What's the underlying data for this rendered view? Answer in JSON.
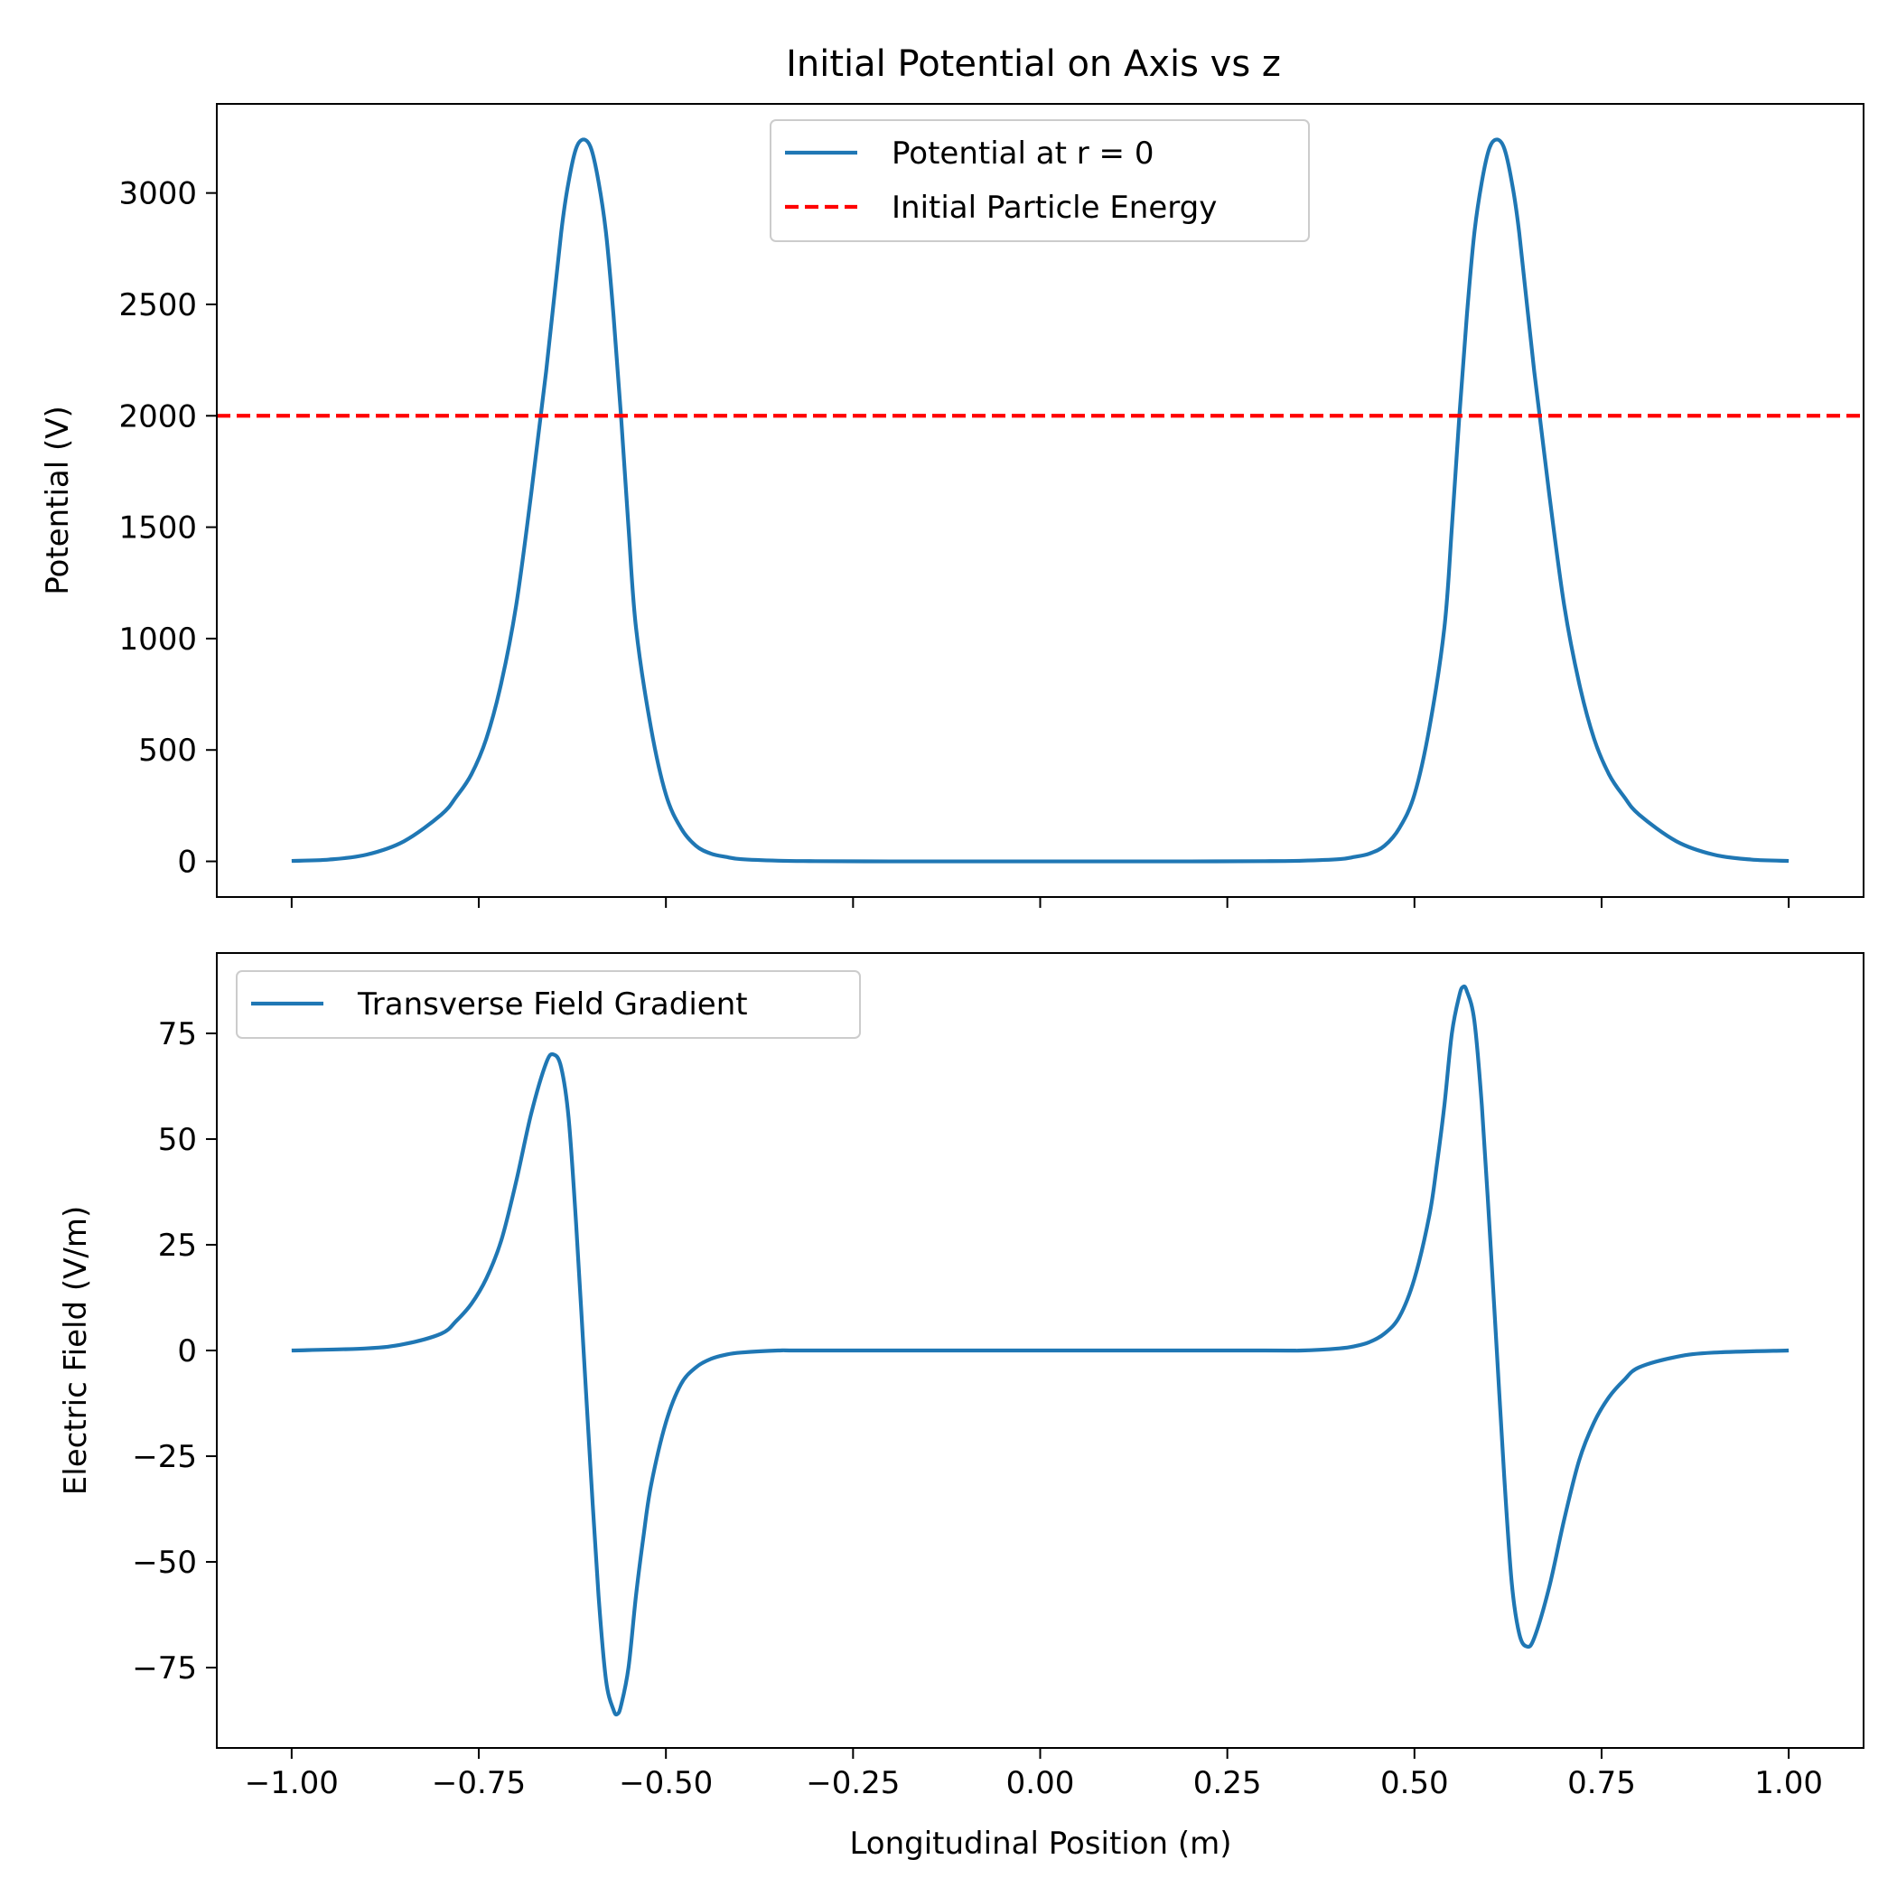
{
  "figure": {
    "title": "Initial Potential on Axis vs z",
    "xlabel": "Longitudinal Position (m)"
  },
  "chart_data": [
    {
      "type": "line",
      "title": "Initial Potential on Axis vs z",
      "xlabel": "",
      "ylabel": "Potential (V)",
      "xlim": [
        -1.1,
        1.1
      ],
      "ylim": [
        -160,
        3400
      ],
      "xticks": [
        -1.0,
        -0.75,
        -0.5,
        -0.25,
        0.0,
        0.25,
        0.5,
        0.75,
        1.0
      ],
      "yticks": [
        0,
        500,
        1000,
        1500,
        2000,
        2500,
        3000
      ],
      "ytick_labels": [
        "0",
        "500",
        "1000",
        "1500",
        "2000",
        "2500",
        "3000"
      ],
      "grid": false,
      "legend": "upper-center",
      "series": [
        {
          "name": "Potential at r = 0",
          "color": "#1f77b4",
          "style": "solid",
          "x": [
            -1.0,
            -0.95,
            -0.9,
            -0.85,
            -0.8,
            -0.78,
            -0.76,
            -0.74,
            -0.72,
            -0.7,
            -0.68,
            -0.66,
            -0.64,
            -0.63,
            -0.62,
            -0.61,
            -0.6,
            -0.59,
            -0.58,
            -0.57,
            -0.56,
            -0.55,
            -0.54,
            -0.52,
            -0.5,
            -0.48,
            -0.46,
            -0.44,
            -0.42,
            -0.4,
            -0.35,
            -0.3,
            -0.2,
            -0.1,
            0.0,
            0.1,
            0.2,
            0.3,
            0.35,
            0.4,
            0.42,
            0.44,
            0.46,
            0.48,
            0.5,
            0.52,
            0.54,
            0.55,
            0.56,
            0.57,
            0.58,
            0.59,
            0.6,
            0.61,
            0.62,
            0.63,
            0.64,
            0.66,
            0.68,
            0.7,
            0.72,
            0.74,
            0.76,
            0.78,
            0.8,
            0.85,
            0.9,
            0.95,
            1.0
          ],
          "y": [
            2,
            8,
            30,
            90,
            210,
            290,
            390,
            550,
            800,
            1150,
            1650,
            2200,
            2820,
            3050,
            3200,
            3240,
            3200,
            3050,
            2820,
            2450,
            2000,
            1500,
            1050,
            600,
            300,
            150,
            70,
            35,
            20,
            10,
            3,
            1,
            0,
            0,
            0,
            0,
            0,
            1,
            3,
            10,
            20,
            35,
            70,
            150,
            300,
            600,
            1050,
            1500,
            2000,
            2450,
            2820,
            3050,
            3200,
            3240,
            3200,
            3050,
            2820,
            2200,
            1650,
            1150,
            800,
            550,
            390,
            290,
            210,
            90,
            30,
            8,
            2
          ]
        },
        {
          "name": "Initial Particle Energy",
          "color": "#ff0000",
          "style": "dashed",
          "x": [
            -1.1,
            1.1
          ],
          "y": [
            2000,
            2000
          ]
        }
      ]
    },
    {
      "type": "line",
      "title": "",
      "xlabel": "Longitudinal Position (m)",
      "ylabel": "Electric Field (V/m)",
      "xlim": [
        -1.1,
        1.1
      ],
      "ylim": [
        -94,
        94
      ],
      "xticks": [
        -1.0,
        -0.75,
        -0.5,
        -0.25,
        0.0,
        0.25,
        0.5,
        0.75,
        1.0
      ],
      "xtick_labels": [
        "−1.00",
        "−0.75",
        "−0.50",
        "−0.25",
        "0.00",
        "0.25",
        "0.50",
        "0.75",
        "1.00"
      ],
      "yticks": [
        -75,
        -50,
        -25,
        0,
        25,
        50,
        75
      ],
      "ytick_labels": [
        "−75",
        "−50",
        "−25",
        "0",
        "25",
        "50",
        "75"
      ],
      "grid": false,
      "legend": "upper-left",
      "series": [
        {
          "name": "Transverse Field Gradient",
          "color": "#1f77b4",
          "style": "solid",
          "x": [
            -1.0,
            -0.9,
            -0.85,
            -0.8,
            -0.78,
            -0.76,
            -0.74,
            -0.72,
            -0.7,
            -0.68,
            -0.66,
            -0.65,
            -0.64,
            -0.63,
            -0.62,
            -0.61,
            -0.6,
            -0.59,
            -0.58,
            -0.57,
            -0.565,
            -0.56,
            -0.55,
            -0.54,
            -0.53,
            -0.52,
            -0.5,
            -0.48,
            -0.46,
            -0.44,
            -0.42,
            -0.4,
            -0.35,
            -0.3,
            0.0,
            0.3,
            0.35,
            0.4,
            0.42,
            0.44,
            0.46,
            0.48,
            0.5,
            0.52,
            0.53,
            0.54,
            0.55,
            0.56,
            0.565,
            0.57,
            0.58,
            0.59,
            0.6,
            0.61,
            0.62,
            0.63,
            0.64,
            0.65,
            0.66,
            0.68,
            0.7,
            0.72,
            0.74,
            0.76,
            0.78,
            0.8,
            0.85,
            0.9,
            1.0
          ],
          "y": [
            0,
            0.5,
            1.5,
            4,
            7,
            11,
            17,
            26,
            40,
            56,
            68,
            70,
            67,
            55,
            30,
            0,
            -30,
            -58,
            -78,
            -85,
            -86,
            -84,
            -75,
            -58,
            -44,
            -32,
            -17,
            -8,
            -4,
            -2,
            -1,
            -0.5,
            0,
            0,
            0,
            0,
            0,
            0.5,
            1,
            2,
            4,
            8,
            17,
            32,
            44,
            58,
            75,
            84,
            86,
            85,
            78,
            58,
            30,
            0,
            -30,
            -55,
            -67,
            -70,
            -68,
            -56,
            -40,
            -26,
            -17,
            -11,
            -7,
            -4,
            -1.5,
            -0.5,
            0
          ]
        }
      ]
    }
  ]
}
